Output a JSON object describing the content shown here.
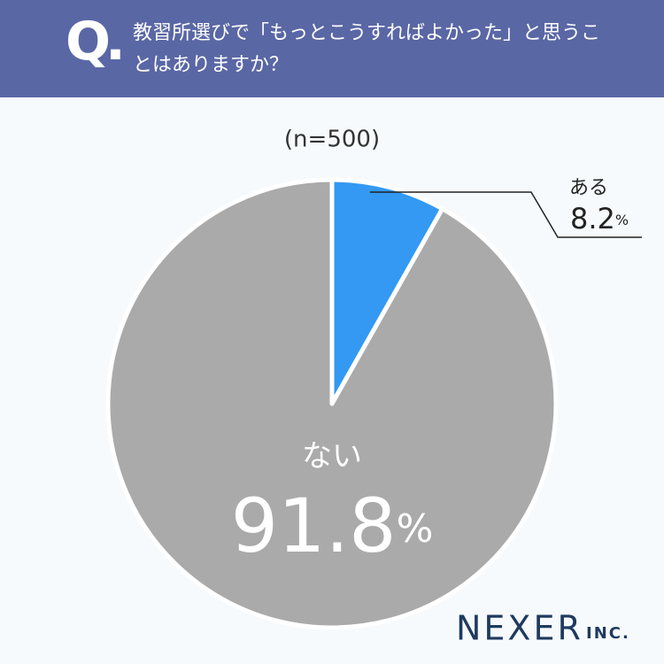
{
  "header": {
    "mark": "Q.",
    "question": "教習所選びで「もっとこうすればよかった」と思うことはありますか？"
  },
  "chart_data": {
    "type": "pie",
    "subtitle": "(n=500)",
    "categories": [
      "ある",
      "ない"
    ],
    "values": [
      8.2,
      91.8
    ],
    "value_labels": [
      "8.2%",
      "91.8%"
    ],
    "colors": [
      "#3399f3",
      "#aaaaaa"
    ]
  },
  "footer": {
    "brand": "NEXER",
    "suffix": "INC."
  }
}
